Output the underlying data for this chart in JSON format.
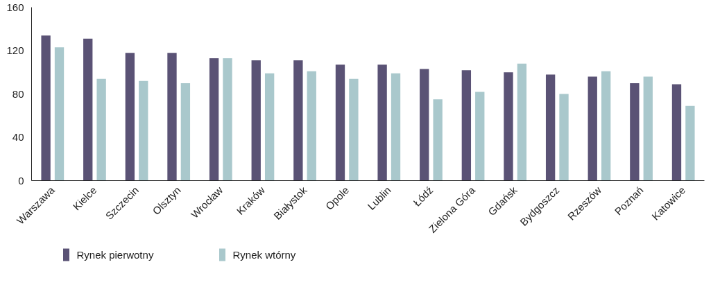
{
  "chart_data": {
    "type": "bar",
    "categories": [
      "Warszawa",
      "Kielce",
      "Szczecin",
      "Olsztyn",
      "Wrocław",
      "Kraków",
      "Białystok",
      "Opole",
      "Lublin",
      "Łódź",
      "Zielona Góra",
      "Gdańsk",
      "Bydgoszcz",
      "Rzeszów",
      "Poznań",
      "Katowice"
    ],
    "series": [
      {
        "name": "Rynek pierwotny",
        "color": "#5a5275",
        "values": [
          134,
          131,
          118,
          118,
          113,
          111,
          111,
          107,
          107,
          103,
          102,
          100,
          98,
          96,
          90,
          89
        ]
      },
      {
        "name": "Rynek wtórny",
        "color": "#a9c8cc",
        "values": [
          123,
          94,
          92,
          90,
          113,
          99,
          101,
          94,
          99,
          75,
          82,
          108,
          80,
          101,
          96,
          69
        ]
      }
    ],
    "ylim": [
      0,
      160
    ],
    "yticks": [
      0,
      40,
      80,
      120,
      160
    ],
    "grid": false,
    "legend": "bottom"
  }
}
